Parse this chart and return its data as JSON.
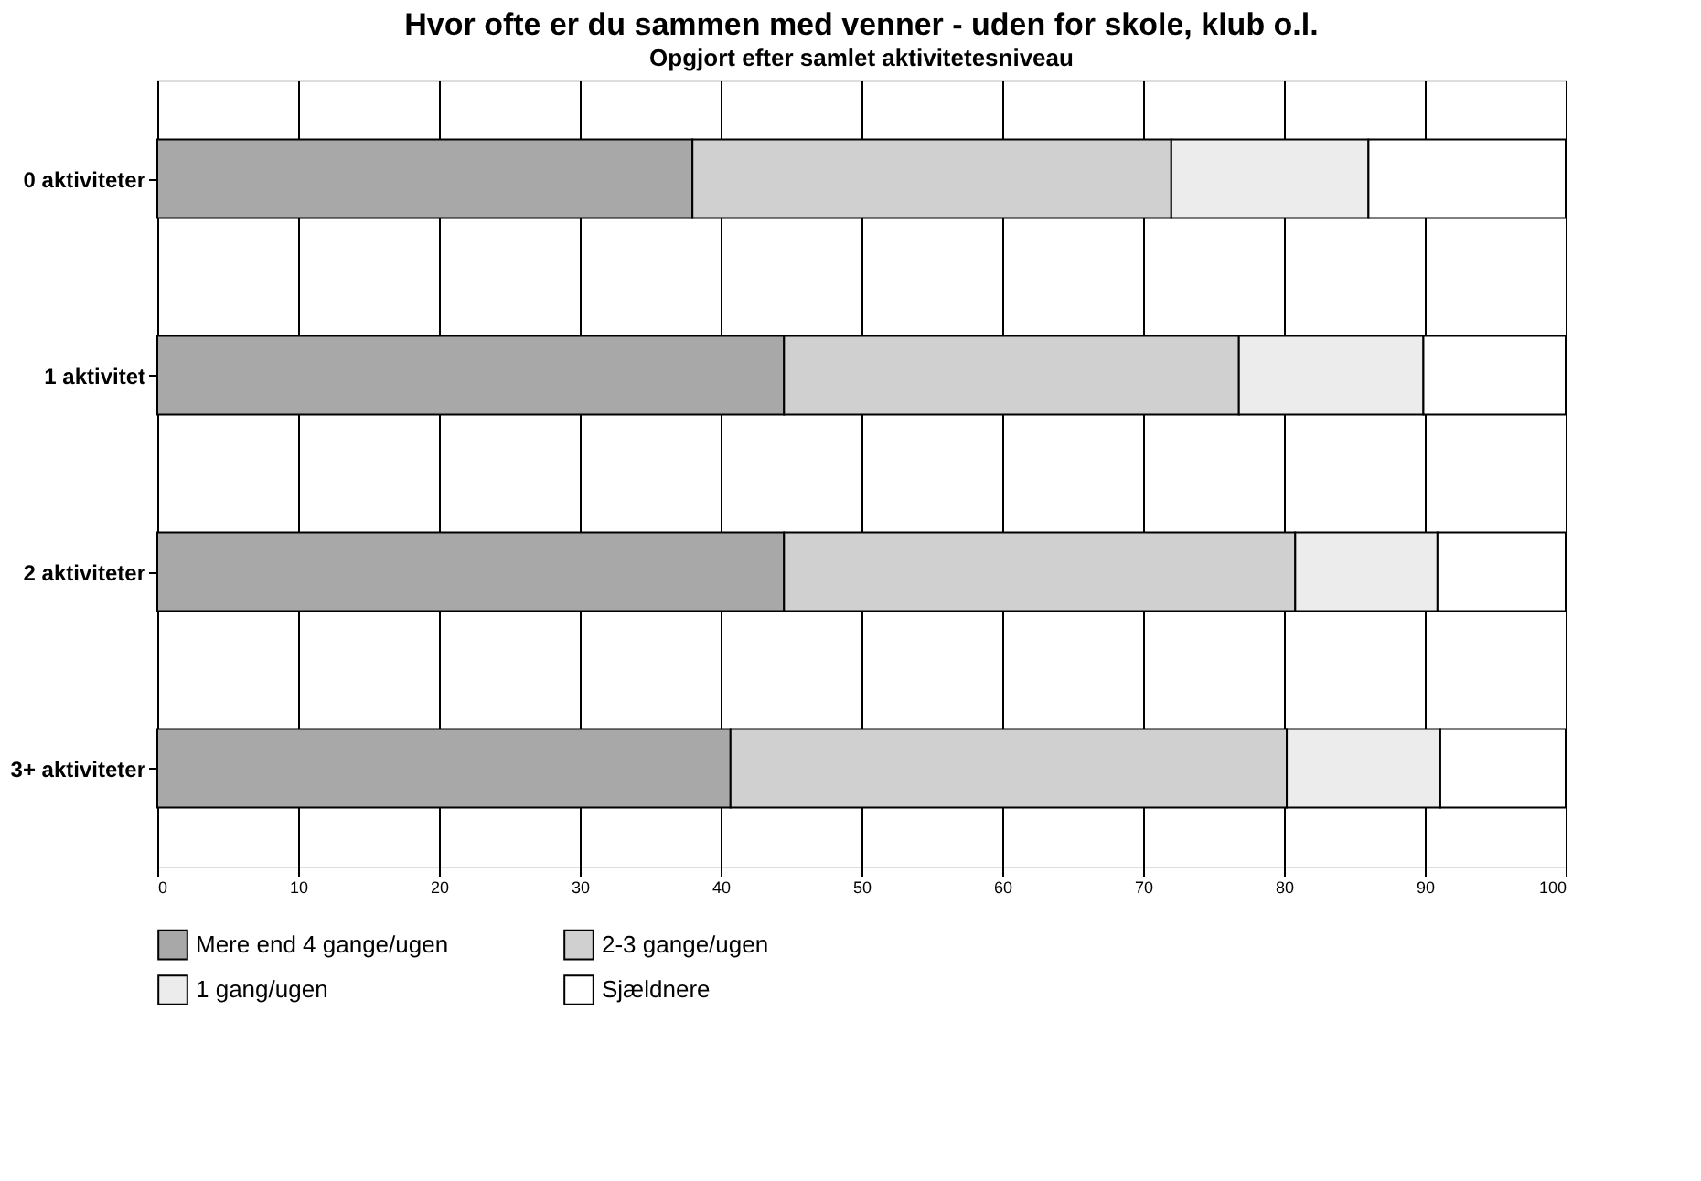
{
  "chart_data": {
    "type": "bar",
    "orientation": "horizontal",
    "stacked": true,
    "title": "Hvor ofte er du sammen med venner - uden for skole, klub o.l.",
    "subtitle": "Opgjort efter samlet aktivitetesniveau",
    "categories": [
      "0 aktiviteter",
      "1 aktivitet",
      "2 aktiviteter",
      "3+ aktiviteter"
    ],
    "series": [
      {
        "name": "Mere end 4 gange/ugen",
        "color": "#a8a8a8",
        "values": [
          38,
          44.5,
          44.5,
          40.7
        ]
      },
      {
        "name": "2-3 gange/ugen",
        "color": "#d0d0d0",
        "values": [
          34,
          32.3,
          36.3,
          39.5
        ]
      },
      {
        "name": "1 gang/ugen",
        "color": "#ececec",
        "values": [
          14,
          13.1,
          10.1,
          10.9
        ]
      },
      {
        "name": "Sjældnere",
        "color": "#ffffff",
        "values": [
          14,
          10.1,
          9.1,
          8.9
        ]
      }
    ],
    "xlim": [
      0,
      100
    ],
    "xticks": [
      0,
      10,
      20,
      30,
      40,
      50,
      60,
      70,
      80,
      90,
      100
    ],
    "grid": "x",
    "legend": "bottom"
  }
}
